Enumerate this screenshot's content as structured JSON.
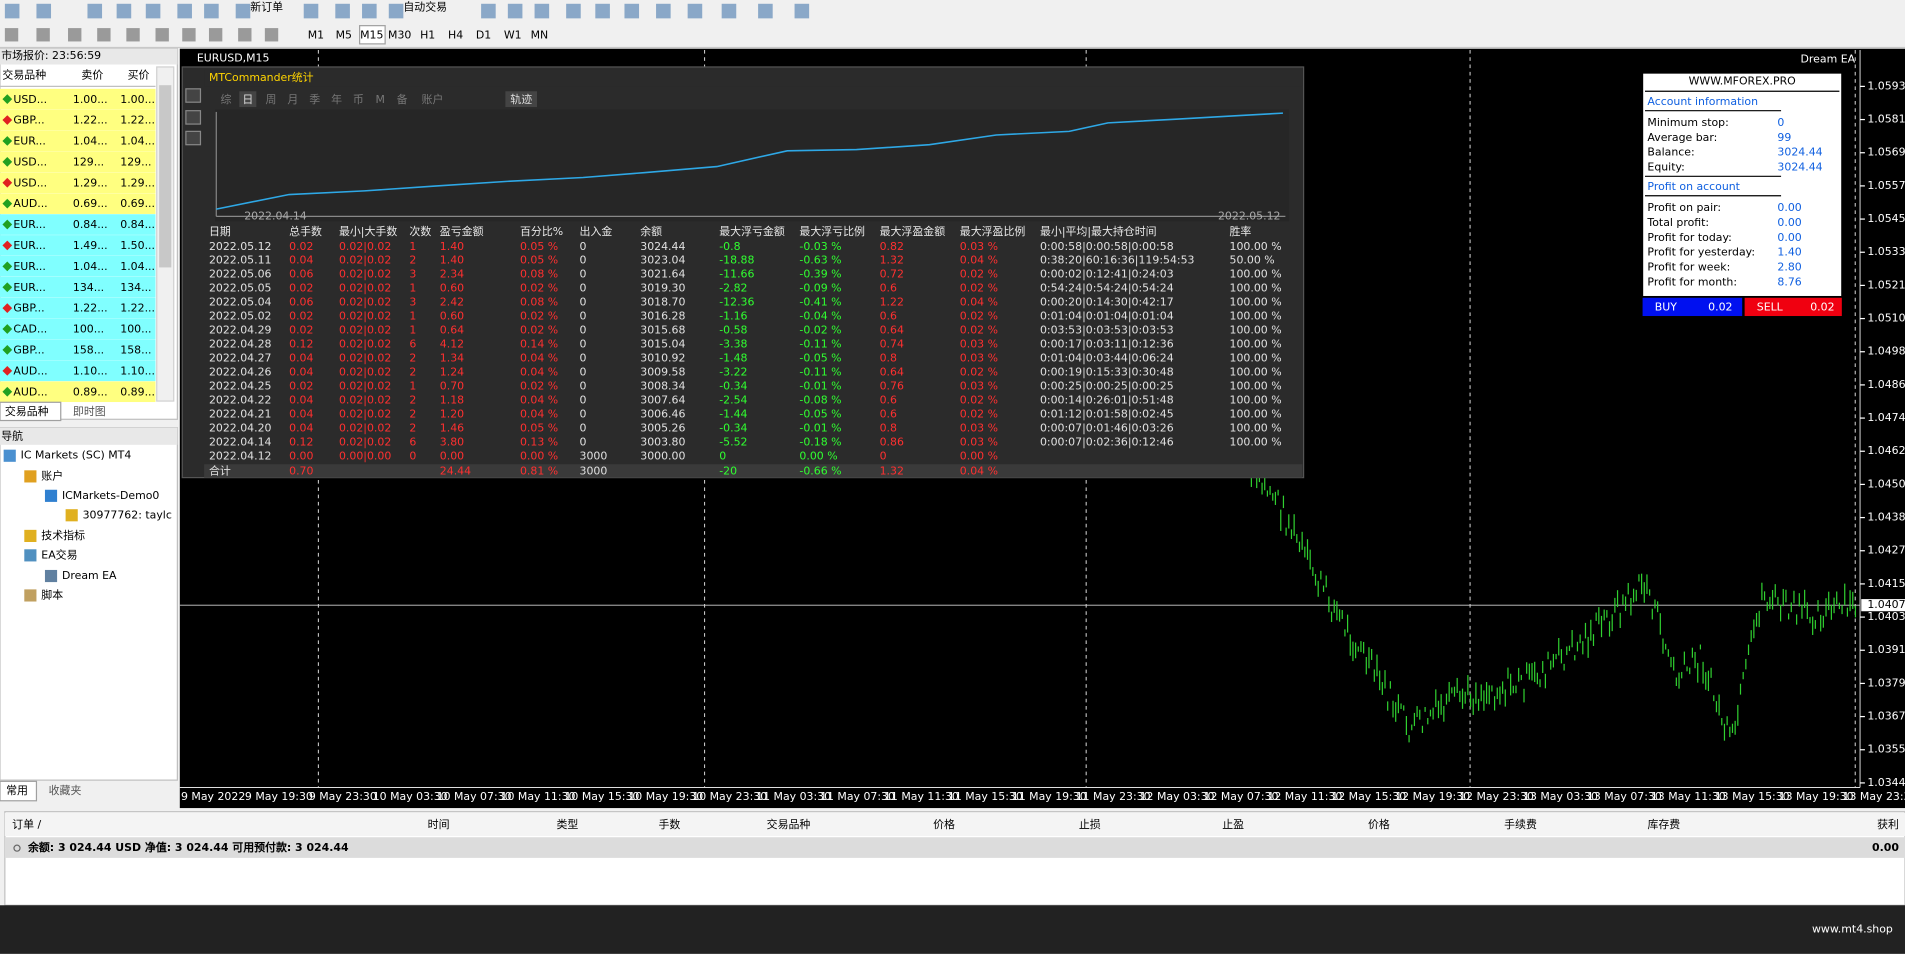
{
  "toolbar": {
    "new_order": "新订单",
    "auto_trading": "自动交易",
    "timeframes": [
      "M1",
      "M5",
      "M15",
      "M30",
      "H1",
      "H4",
      "D1",
      "W1",
      "MN"
    ]
  },
  "market_watch": {
    "title": "市场报价: 23:56:59",
    "headers": [
      "交易品种",
      "卖价",
      "买价"
    ],
    "rows": [
      [
        "USD...",
        "1.00...",
        "1.00..."
      ],
      [
        "GBP...",
        "1.22...",
        "1.22..."
      ],
      [
        "EUR...",
        "1.04...",
        "1.04..."
      ],
      [
        "USD...",
        "129...",
        "129..."
      ],
      [
        "USD...",
        "1.29...",
        "1.29..."
      ],
      [
        "AUD...",
        "0.69...",
        "0.69..."
      ],
      [
        "EUR...",
        "0.84...",
        "0.84..."
      ],
      [
        "EUR...",
        "1.49...",
        "1.50..."
      ],
      [
        "EUR...",
        "1.04...",
        "1.04..."
      ],
      [
        "EUR...",
        "134...",
        "134..."
      ],
      [
        "GBP...",
        "1.22...",
        "1.22..."
      ],
      [
        "CAD...",
        "100...",
        "100..."
      ],
      [
        "GBP...",
        "158...",
        "158..."
      ],
      [
        "AUD...",
        "1.10...",
        "1.10..."
      ],
      [
        "AUD...",
        "0.89...",
        "0.89..."
      ]
    ],
    "row_backgrounds": [
      "#ffff80",
      "#ffff80",
      "#ffff80",
      "#ffff80",
      "#ffff80",
      "#ffff80",
      "#80ffff",
      "#80ffff",
      "#80ffff",
      "#80ffff",
      "#80ffff",
      "#80ffff",
      "#80ffff",
      "#80ffff",
      "#ffff80"
    ],
    "tabs": [
      "交易品种",
      "即时图"
    ]
  },
  "navigator": {
    "title": "导航",
    "items": [
      "IC Markets (SC) MT4",
      "账户",
      "ICMarkets-Demo0",
      "30977762: taylc",
      "技术指标",
      "EA交易",
      "Dream EA",
      "脚本"
    ],
    "tabs": [
      "常用",
      "收藏夹"
    ]
  },
  "chart": {
    "symbol": "EURUSD,M15",
    "ea": "Dream EA",
    "price_labels": [
      "1.05930",
      "1.05810",
      "1.05690",
      "1.05575",
      "1.05455",
      "1.05335",
      "1.05215",
      "1.05100",
      "1.04980",
      "1.04860",
      "1.04740",
      "1.04625",
      "1.04505",
      "1.04385",
      "1.04270",
      "1.04150",
      "1.04030",
      "1.03915",
      "1.03795",
      "1.03675",
      "1.03555",
      "1.03440"
    ],
    "current_price": "1.04074",
    "time_labels": [
      "9 May 2022",
      "9 May 19:30",
      "9 May 23:30",
      "10 May 03:30",
      "10 May 07:30",
      "10 May 11:30",
      "10 May 15:30",
      "10 May 19:30",
      "10 May 23:30",
      "11 May 03:30",
      "11 May 07:30",
      "11 May 11:30",
      "11 May 15:30",
      "11 May 19:30",
      "11 May 23:30",
      "12 May 03:30",
      "12 May 07:30",
      "12 May 11:30",
      "12 May 15:30",
      "12 May 19:30",
      "12 May 23:30",
      "13 May 03:30",
      "13 May 07:30",
      "13 May 11:30",
      "13 May 15:30",
      "13 May 19:30",
      "13 May 23:30"
    ]
  },
  "stats": {
    "title": "MTCommander统计",
    "tabs": [
      "综",
      "日",
      "周",
      "月",
      "季",
      "年",
      "币",
      "M",
      "备",
      "账户"
    ],
    "track": "轨迹",
    "start_date": "2022.04.14",
    "end_date": "2022.05.12",
    "headers": [
      "日期",
      "总手数",
      "最小|大手数",
      "次数",
      "盈亏金额",
      "百分比%",
      "出入金",
      "余额",
      "最大浮亏金额",
      "最大浮亏比例",
      "最大浮盈金额",
      "最大浮盈比例",
      "最小|平均|最大持仓时间",
      "胜率"
    ],
    "column_colors": [
      "#e0e0e0",
      "#ff3030",
      "#ff3030",
      "#ff3030",
      "#ff3030",
      "#ff3030",
      "#e0e0e0",
      "#e0e0e0",
      "#30ff30",
      "#30ff30",
      "#ff3030",
      "#ff3030",
      "#e0e0e0",
      "#e0e0e0"
    ],
    "rows": [
      [
        "2022.05.12",
        "0.02",
        "0.02|0.02",
        "1",
        "1.40",
        "0.05 %",
        "0",
        "3024.44",
        "-0.8",
        "-0.03 %",
        "0.82",
        "0.03 %",
        "0:00:58|0:00:58|0:00:58",
        "100.00 %"
      ],
      [
        "2022.05.11",
        "0.04",
        "0.02|0.02",
        "2",
        "1.40",
        "0.05 %",
        "0",
        "3023.04",
        "-18.88",
        "-0.63 %",
        "1.32",
        "0.04 %",
        "0:38:20|60:16:36|119:54:53",
        "50.00 %"
      ],
      [
        "2022.05.06",
        "0.06",
        "0.02|0.02",
        "3",
        "2.34",
        "0.08 %",
        "0",
        "3021.64",
        "-11.66",
        "-0.39 %",
        "0.72",
        "0.02 %",
        "0:00:02|0:12:41|0:24:03",
        "100.00 %"
      ],
      [
        "2022.05.05",
        "0.02",
        "0.02|0.02",
        "1",
        "0.60",
        "0.02 %",
        "0",
        "3019.30",
        "-2.82",
        "-0.09 %",
        "0.6",
        "0.02 %",
        "0:54:24|0:54:24|0:54:24",
        "100.00 %"
      ],
      [
        "2022.05.04",
        "0.06",
        "0.02|0.02",
        "3",
        "2.42",
        "0.08 %",
        "0",
        "3018.70",
        "-12.36",
        "-0.41 %",
        "1.22",
        "0.04 %",
        "0:00:20|0:14:30|0:42:17",
        "100.00 %"
      ],
      [
        "2022.05.02",
        "0.02",
        "0.02|0.02",
        "1",
        "0.60",
        "0.02 %",
        "0",
        "3016.28",
        "-1.16",
        "-0.04 %",
        "0.6",
        "0.02 %",
        "0:01:04|0:01:04|0:01:04",
        "100.00 %"
      ],
      [
        "2022.04.29",
        "0.02",
        "0.02|0.02",
        "1",
        "0.64",
        "0.02 %",
        "0",
        "3015.68",
        "-0.58",
        "-0.02 %",
        "0.64",
        "0.02 %",
        "0:03:53|0:03:53|0:03:53",
        "100.00 %"
      ],
      [
        "2022.04.28",
        "0.12",
        "0.02|0.02",
        "6",
        "4.12",
        "0.14 %",
        "0",
        "3015.04",
        "-3.38",
        "-0.11 %",
        "0.74",
        "0.03 %",
        "0:00:17|0:03:11|0:12:36",
        "100.00 %"
      ],
      [
        "2022.04.27",
        "0.04",
        "0.02|0.02",
        "2",
        "1.34",
        "0.04 %",
        "0",
        "3010.92",
        "-1.48",
        "-0.05 %",
        "0.8",
        "0.03 %",
        "0:01:04|0:03:44|0:06:24",
        "100.00 %"
      ],
      [
        "2022.04.26",
        "0.04",
        "0.02|0.02",
        "2",
        "1.24",
        "0.04 %",
        "0",
        "3009.58",
        "-3.22",
        "-0.11 %",
        "0.64",
        "0.02 %",
        "0:00:19|0:15:33|0:30:48",
        "100.00 %"
      ],
      [
        "2022.04.25",
        "0.02",
        "0.02|0.02",
        "1",
        "0.70",
        "0.02 %",
        "0",
        "3008.34",
        "-0.34",
        "-0.01 %",
        "0.76",
        "0.03 %",
        "0:00:25|0:00:25|0:00:25",
        "100.00 %"
      ],
      [
        "2022.04.22",
        "0.04",
        "0.02|0.02",
        "2",
        "1.18",
        "0.04 %",
        "0",
        "3007.64",
        "-2.54",
        "-0.08 %",
        "0.6",
        "0.02 %",
        "0:00:14|0:26:01|0:51:48",
        "100.00 %"
      ],
      [
        "2022.04.21",
        "0.04",
        "0.02|0.02",
        "2",
        "1.20",
        "0.04 %",
        "0",
        "3006.46",
        "-1.44",
        "-0.05 %",
        "0.6",
        "0.02 %",
        "0:01:12|0:01:58|0:02:45",
        "100.00 %"
      ],
      [
        "2022.04.20",
        "0.04",
        "0.02|0.02",
        "2",
        "1.46",
        "0.05 %",
        "0",
        "3005.26",
        "-0.34",
        "-0.01 %",
        "0.8",
        "0.03 %",
        "0:00:07|0:01:46|0:03:26",
        "100.00 %"
      ],
      [
        "2022.04.14",
        "0.12",
        "0.02|0.02",
        "6",
        "3.80",
        "0.13 %",
        "0",
        "3003.80",
        "-5.52",
        "-0.18 %",
        "0.86",
        "0.03 %",
        "0:00:07|0:02:36|0:12:46",
        "100.00 %"
      ],
      [
        "2022.04.12",
        "0.00",
        "0.00|0.00",
        "0",
        "0.00",
        "0.00 %",
        "3000",
        "3000.00",
        "0",
        "0.00 %",
        "0",
        "0.00 %"
      ]
    ],
    "total": {
      "0": "合计",
      "1": "0.70",
      "4": "24.44",
      "5": "0.81 %",
      "6": "3000",
      "8": "-20",
      "9": "-0.66 %",
      "10": "1.32",
      "11": "0.04 %"
    }
  },
  "info_panel": {
    "site": "WWW.MFOREX.PRO",
    "account_header": "Account information",
    "account_items": [
      {
        "label": "Minimum stop:",
        "value": "0"
      },
      {
        "label": "Average bar:",
        "value": "99"
      },
      {
        "label": "Balance:",
        "value": "3024.44"
      },
      {
        "label": "Equity:",
        "value": "3024.44"
      }
    ],
    "profit_header": "Profit on account",
    "profit_items": [
      {
        "label": "Profit on pair:",
        "value": "0.00"
      },
      {
        "label": "Total profit:",
        "value": "0.00"
      },
      {
        "label": "Profit for today:",
        "value": "0.00"
      },
      {
        "label": "Profit for yesterday:",
        "value": "1.40"
      },
      {
        "label": "Profit for week:",
        "value": "2.80"
      },
      {
        "label": "Profit for month:",
        "value": "8.76"
      }
    ],
    "buy": {
      "label": "BUY",
      "lots": "0.02"
    },
    "sell": {
      "label": "SELL",
      "lots": "0.02"
    }
  },
  "terminal": {
    "headers": [
      "订单 /",
      "时间",
      "类型",
      "手数",
      "交易品种",
      "价格",
      "止损",
      "止盈",
      "价格",
      "手续费",
      "库存费",
      "获利"
    ],
    "summary": "余额: 3 024.44 USD  净值: 3 024.44  可用预付款: 3 024.44",
    "profit": "0.00"
  },
  "footer": "www.mt4.shop"
}
